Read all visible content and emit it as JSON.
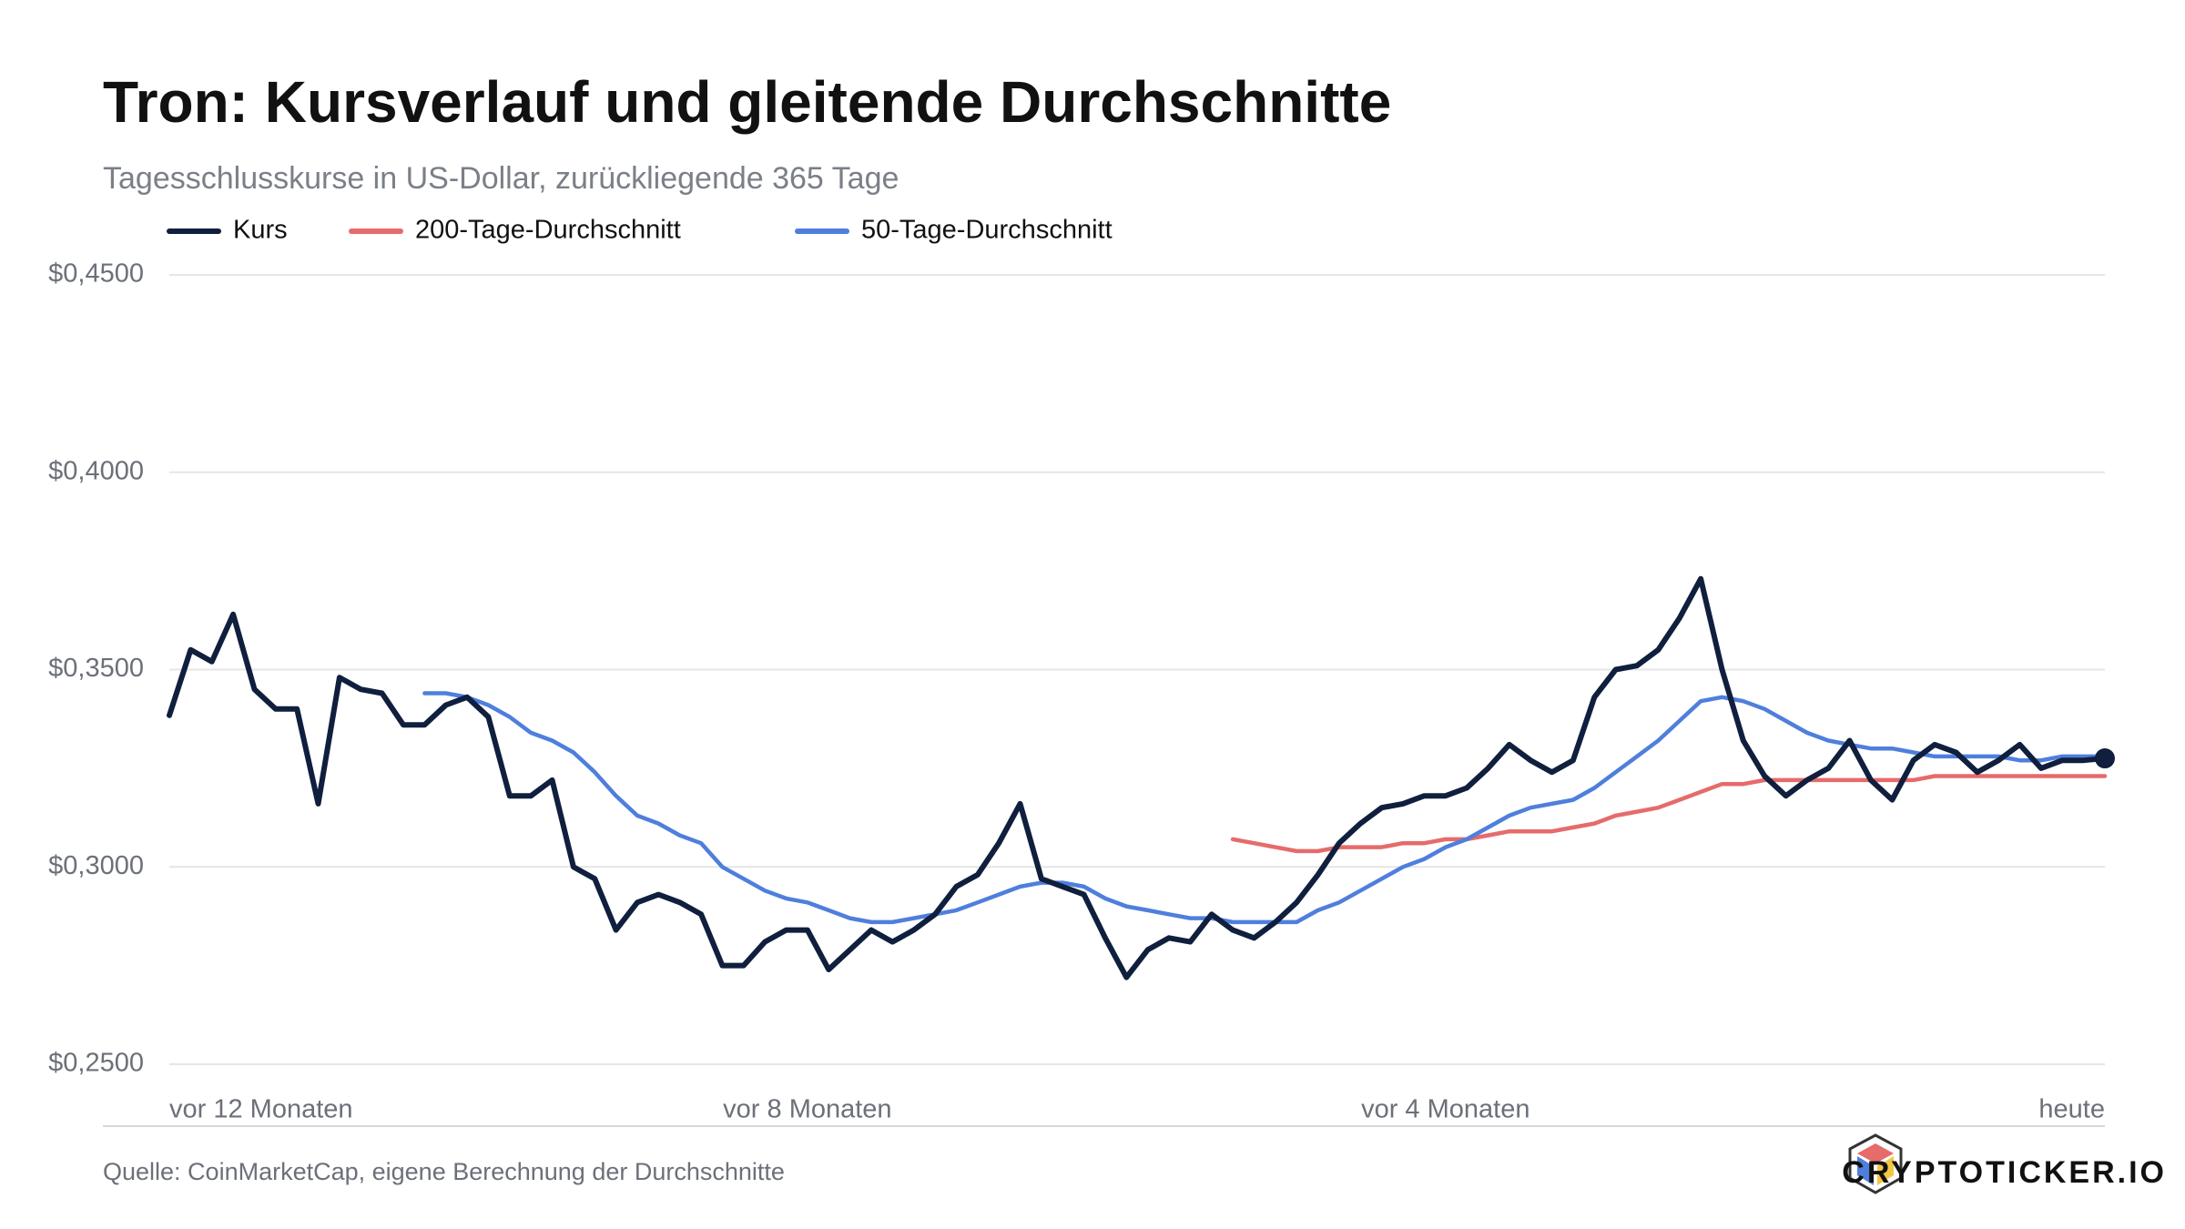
{
  "chart_data": {
    "type": "line",
    "title": "Tron: Kursverlauf und gleitende Durchschnitte",
    "subtitle": "Tagesschlusskurse in US-Dollar, zurückliegende 365 Tage",
    "source": "Quelle: CoinMarketCap, eigene Berechnung der Durchschnitte",
    "brand": "CRYPTOTICKER.IO",
    "categories": [
      "vor 12 Monaten",
      null,
      null,
      null,
      null,
      null,
      null,
      null,
      null,
      null,
      null,
      null,
      null,
      null,
      null,
      null,
      null,
      null,
      null,
      null,
      null,
      null,
      null,
      null,
      null,
      null,
      null,
      null,
      null,
      null,
      "vor 8 Monaten",
      null,
      null,
      null,
      null,
      null,
      null,
      null,
      null,
      null,
      null,
      null,
      null,
      null,
      null,
      null,
      null,
      null,
      null,
      null,
      null,
      null,
      null,
      null,
      null,
      null,
      null,
      null,
      null,
      null,
      "vor 4 Monaten",
      null,
      null,
      null,
      null,
      null,
      null,
      null,
      null,
      null,
      null,
      null,
      null,
      null,
      null,
      null,
      null,
      null,
      null,
      null,
      null,
      null,
      null,
      null,
      null,
      null,
      null,
      null,
      null,
      null,
      null,
      "heute"
    ],
    "series": [
      {
        "name": "Kurs",
        "color": "#0f1f3d",
        "values": [
          0.3384,
          0.355,
          0.352,
          0.364,
          0.345,
          0.34,
          0.34,
          0.316,
          0.348,
          0.345,
          0.344,
          0.336,
          0.336,
          0.341,
          0.343,
          0.338,
          0.318,
          0.318,
          0.322,
          0.3,
          0.297,
          0.284,
          0.291,
          0.293,
          0.291,
          0.288,
          0.275,
          0.275,
          0.281,
          0.284,
          0.284,
          0.274,
          0.279,
          0.284,
          0.281,
          0.284,
          0.288,
          0.295,
          0.298,
          0.306,
          0.316,
          0.297,
          0.295,
          0.293,
          0.282,
          0.272,
          0.279,
          0.282,
          0.281,
          0.288,
          0.284,
          0.282,
          0.286,
          0.291,
          0.298,
          0.306,
          0.311,
          0.315,
          0.316,
          0.318,
          0.318,
          0.32,
          0.325,
          0.331,
          0.327,
          0.324,
          0.327,
          0.343,
          0.35,
          0.351,
          0.355,
          0.363,
          0.373,
          0.35,
          0.332,
          0.323,
          0.318,
          0.322,
          0.325,
          0.332,
          0.322,
          0.317,
          0.327,
          0.331,
          0.329,
          0.324,
          0.327,
          0.331,
          0.325,
          0.327,
          0.327,
          0.3275
        ]
      },
      {
        "name": "200-Tage-Durchschnitt",
        "color": "#e66b6b",
        "values": [
          null,
          null,
          null,
          null,
          null,
          null,
          null,
          null,
          null,
          null,
          null,
          null,
          null,
          null,
          null,
          null,
          null,
          null,
          null,
          null,
          null,
          null,
          null,
          null,
          null,
          null,
          null,
          null,
          null,
          null,
          null,
          null,
          null,
          null,
          null,
          null,
          null,
          null,
          null,
          null,
          null,
          null,
          null,
          null,
          null,
          null,
          null,
          null,
          null,
          null,
          0.307,
          0.306,
          0.305,
          0.304,
          0.304,
          0.305,
          0.305,
          0.305,
          0.306,
          0.306,
          0.307,
          0.307,
          0.308,
          0.309,
          0.309,
          0.309,
          0.31,
          0.311,
          0.313,
          0.314,
          0.315,
          0.317,
          0.319,
          0.321,
          0.321,
          0.322,
          0.322,
          0.322,
          0.322,
          0.322,
          0.322,
          0.322,
          0.322,
          0.323,
          0.323,
          0.323,
          0.323,
          0.323,
          0.323,
          0.323,
          0.323,
          0.323
        ]
      },
      {
        "name": "50-Tage-Durchschnitt",
        "color": "#4f7fdc",
        "values": [
          null,
          null,
          null,
          null,
          null,
          null,
          null,
          null,
          null,
          null,
          null,
          null,
          0.344,
          0.344,
          0.343,
          0.341,
          0.338,
          0.334,
          0.332,
          0.329,
          0.324,
          0.318,
          0.313,
          0.311,
          0.308,
          0.306,
          0.3,
          0.297,
          0.294,
          0.292,
          0.291,
          0.289,
          0.287,
          0.286,
          0.286,
          0.287,
          0.288,
          0.289,
          0.291,
          0.293,
          0.295,
          0.296,
          0.296,
          0.295,
          0.292,
          0.29,
          0.289,
          0.288,
          0.287,
          0.287,
          0.286,
          0.286,
          0.286,
          0.286,
          0.289,
          0.291,
          0.294,
          0.297,
          0.3,
          0.302,
          0.305,
          0.307,
          0.31,
          0.313,
          0.315,
          0.316,
          0.317,
          0.32,
          0.324,
          0.328,
          0.332,
          0.337,
          0.342,
          0.343,
          0.342,
          0.34,
          0.337,
          0.334,
          0.332,
          0.331,
          0.33,
          0.33,
          0.329,
          0.328,
          0.328,
          0.328,
          0.328,
          0.327,
          0.327,
          0.328,
          0.328,
          0.328
        ]
      }
    ],
    "ylim": [
      0.25,
      0.45
    ],
    "yticks": [
      {
        "value": 0.25,
        "label": "$0,2500"
      },
      {
        "value": 0.3,
        "label": "$0,3000"
      },
      {
        "value": 0.35,
        "label": "$0,3500"
      },
      {
        "value": 0.4,
        "label": "$0,4000"
      },
      {
        "value": 0.45,
        "label": "$0,4500"
      }
    ],
    "grid": true
  }
}
